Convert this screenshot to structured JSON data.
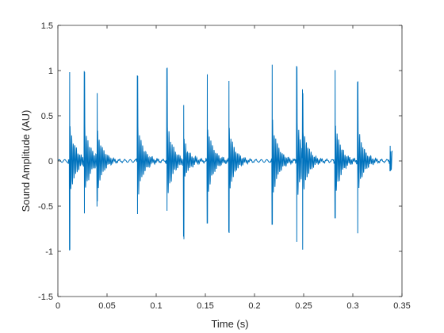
{
  "chart_data": {
    "type": "line",
    "title": "",
    "xlabel": "Time (s)",
    "ylabel": "Sound Amplitude (AU)",
    "xlim": [
      0,
      0.35
    ],
    "ylim": [
      -1.5,
      1.5
    ],
    "xticks": [
      0,
      0.05,
      0.1,
      0.15,
      0.2,
      0.25,
      0.3,
      0.35
    ],
    "xtick_labels": [
      "0",
      "0.05",
      "0.1",
      "0.15",
      "0.2",
      "0.25",
      "0.3",
      "0.35"
    ],
    "yticks": [
      -1.5,
      -1,
      -0.5,
      0,
      0.5,
      1,
      1.5
    ],
    "ytick_labels": [
      "-1.5",
      "-1",
      "-0.5",
      "0",
      "0.5",
      "1",
      "1.5"
    ],
    "grid": false,
    "box": true,
    "line_color": "#0072BD",
    "axis_color": "#262626",
    "x_end": 0.34,
    "events": [
      {
        "t": 0.012,
        "amp": 0.97,
        "neg": -1.0
      },
      {
        "t": 0.027,
        "amp": 0.98,
        "neg": -0.6
      },
      {
        "t": 0.04,
        "amp": 0.72,
        "neg": -0.5
      },
      {
        "t": 0.081,
        "amp": 0.95,
        "neg": -0.58
      },
      {
        "t": 0.111,
        "amp": 1.03,
        "neg": -0.55
      },
      {
        "t": 0.128,
        "amp": 0.62,
        "neg": -0.85
      },
      {
        "t": 0.152,
        "amp": 0.95,
        "neg": -0.7
      },
      {
        "t": 0.174,
        "amp": 0.88,
        "neg": -0.8
      },
      {
        "t": 0.218,
        "amp": 1.05,
        "neg": -0.72
      },
      {
        "t": 0.243,
        "amp": 1.06,
        "neg": -0.88
      },
      {
        "t": 0.249,
        "amp": 0.9,
        "neg": -0.8
      },
      {
        "t": 0.282,
        "amp": 1.02,
        "neg": -0.62
      },
      {
        "t": 0.305,
        "amp": 0.88,
        "neg": -0.8
      },
      {
        "t": 0.338,
        "amp": 0.18,
        "neg": -0.1
      }
    ]
  }
}
